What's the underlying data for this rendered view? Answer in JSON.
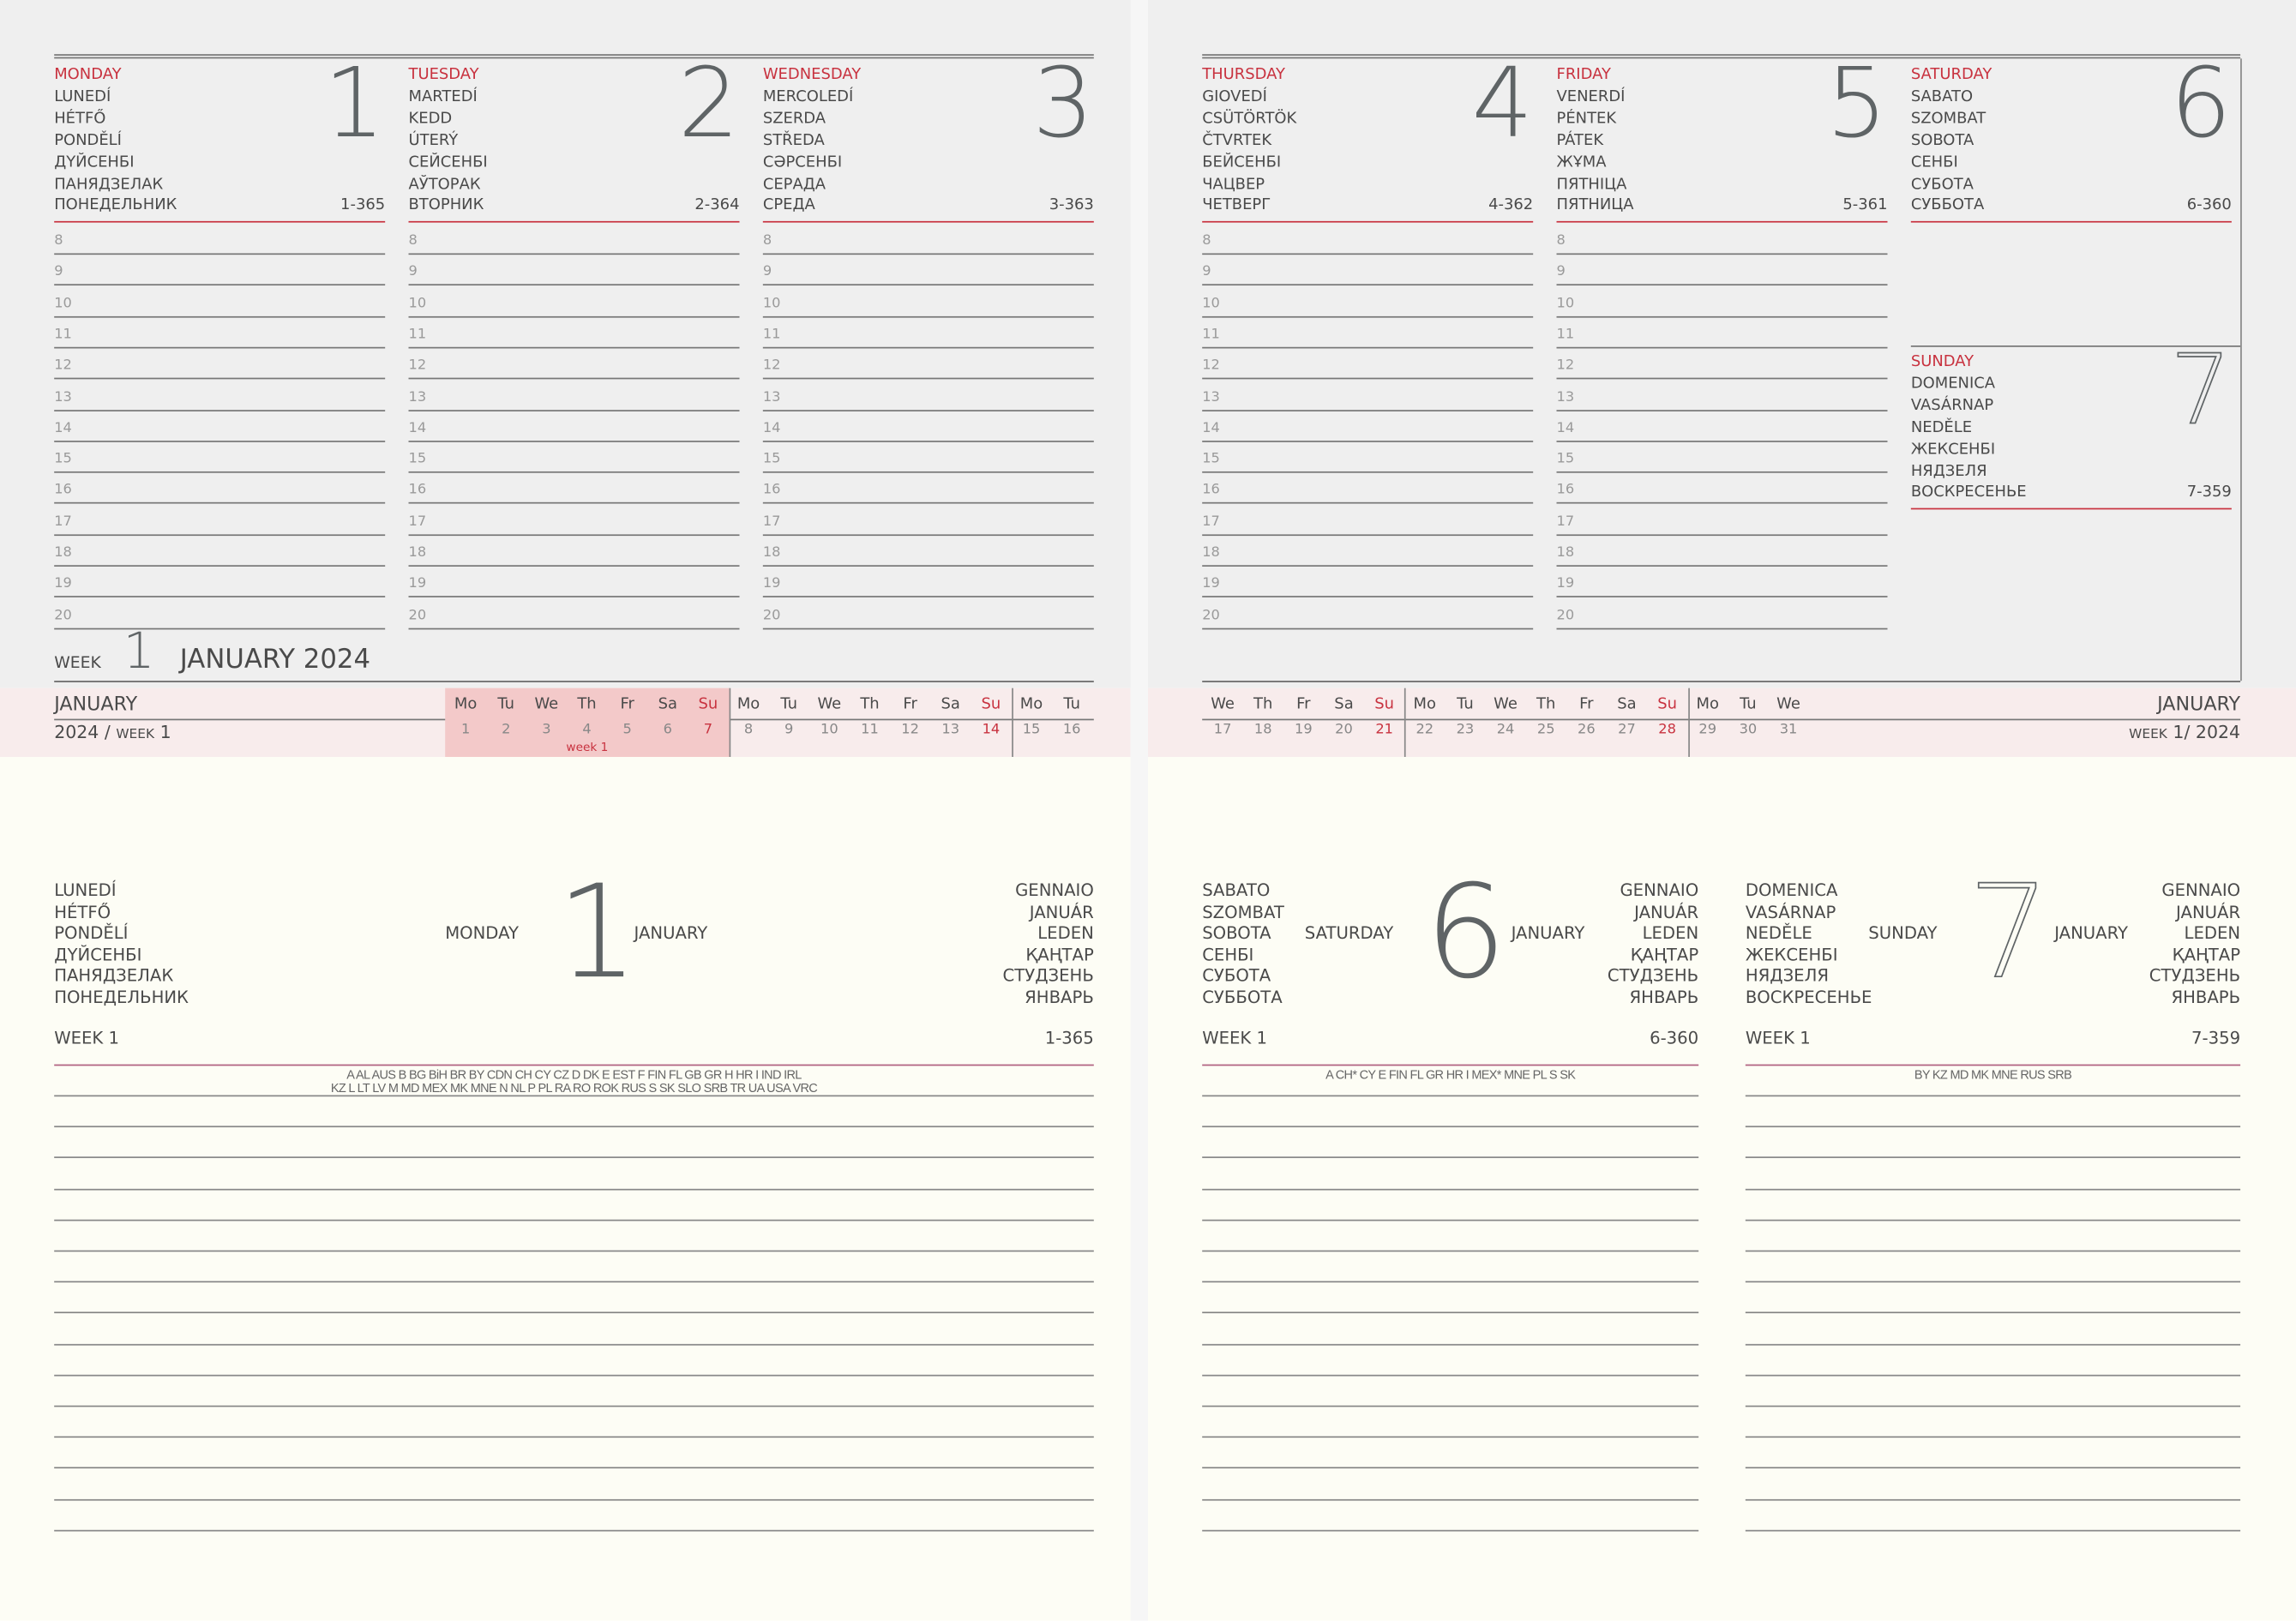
{
  "colors": {
    "accent": "#c8323f",
    "top_bg": "#efefef",
    "strip_bg": "#f8ecec",
    "week_highlight": "#f3c9c9",
    "bottom_bg": "#fdfdf5",
    "text": "#4a4a4a"
  },
  "top_left": {
    "days": [
      {
        "names": [
          "MONDAY",
          "LUNEDÍ",
          "HÉTFŐ",
          "PONDĚLÍ",
          "ДҮЙСЕНБІ",
          "ПАНЯДЗЕЛАК",
          "ПОНЕДЕЛЬНИК"
        ],
        "number": "1",
        "count": "1-365"
      },
      {
        "names": [
          "TUESDAY",
          "MARTEDÍ",
          "KEDD",
          "ÚTERÝ",
          "СЕЙСЕНБІ",
          "АЎТОРАК",
          "ВТОРНИК"
        ],
        "number": "2",
        "count": "2-364"
      },
      {
        "names": [
          "WEDNESDAY",
          "MERCOLEDÍ",
          "SZERDA",
          "STŘEDA",
          "СӘРСЕНБІ",
          "СЕРАДА",
          "СРЕДА"
        ],
        "number": "3",
        "count": "3-363"
      }
    ],
    "week_label": "WEEK",
    "week_number": "1",
    "month_year": "JANUARY 2024"
  },
  "top_right": {
    "days": [
      {
        "names": [
          "THURSDAY",
          "GIOVEDÍ",
          "CSÜTÖRTÖK",
          "ČTVRTEK",
          "БЕЙСЕНБІ",
          "ЧАЦВЕР",
          "ЧЕТВЕРГ"
        ],
        "number": "4",
        "count": "4-362"
      },
      {
        "names": [
          "FRIDAY",
          "VENERDÍ",
          "PÉNTEK",
          "PÁTEK",
          "ЖҰМА",
          "ПЯТНІЦА",
          "ПЯТНИЦА"
        ],
        "number": "5",
        "count": "5-361"
      }
    ],
    "saturday": {
      "names": [
        "SATURDAY",
        "SABATO",
        "SZOMBAT",
        "SOBOTA",
        "СЕНБІ",
        "СУБОТА",
        "СУББОТА"
      ],
      "number": "6",
      "count": "6-360"
    },
    "sunday": {
      "names": [
        "SUNDAY",
        "DOMENICA",
        "VASÁRNAP",
        "NEDĚLE",
        "ЖЕКСЕНБІ",
        "НЯДЗЕЛЯ",
        "ВОСКРЕСЕНЬЕ"
      ],
      "number": "7",
      "count": "7-359"
    }
  },
  "hours": [
    "8",
    "9",
    "10",
    "11",
    "12",
    "13",
    "14",
    "15",
    "16",
    "17",
    "18",
    "19",
    "20"
  ],
  "strip_left": {
    "month": "JANUARY",
    "year": "2024",
    "sep": "/",
    "week_label": "WEEK",
    "week": "1",
    "weekdays": [
      "Mo",
      "Tu",
      "We",
      "Th",
      "Fr",
      "Sa",
      "Su",
      "Mo",
      "Tu",
      "We",
      "Th",
      "Fr",
      "Sa",
      "Su",
      "Mo",
      "Tu"
    ],
    "dates": [
      "1",
      "2",
      "3",
      "4",
      "5",
      "6",
      "7",
      "8",
      "9",
      "10",
      "11",
      "12",
      "13",
      "14",
      "15",
      "16"
    ],
    "highlight_caption": "week 1"
  },
  "strip_right": {
    "month": "JANUARY",
    "week_label": "WEEK",
    "week": "1",
    "sep": "/",
    "year": "2024",
    "weekdays": [
      "We",
      "Th",
      "Fr",
      "Sa",
      "Su",
      "Mo",
      "Tu",
      "We",
      "Th",
      "Fr",
      "Sa",
      "Su",
      "Mo",
      "Tu",
      "We"
    ],
    "dates": [
      "17",
      "18",
      "19",
      "20",
      "21",
      "22",
      "23",
      "24",
      "25",
      "26",
      "27",
      "28",
      "29",
      "30",
      "31"
    ]
  },
  "bottom": [
    {
      "left_names": [
        "LUNEDÍ",
        "HÉTFŐ",
        "PONDĚLÍ",
        "ДҮЙСЕНБІ",
        "ПАНЯДЗЕЛАК",
        "ПОНЕДЕЛЬНИК"
      ],
      "day": "MONDAY",
      "number": "1",
      "month": "JANUARY",
      "right_names": [
        "GENNAIO",
        "JANUÁR",
        "LEDEN",
        "ҚАҢТАР",
        "СТУДЗЕНЬ",
        "ЯНВАРЬ"
      ],
      "week": "WEEK 1",
      "count": "1-365",
      "codes": [
        "A AL AUS B BG BiH BR BY CDN CH CY CZ D DK E EST F FIN FL GB GR H HR I IND IRL",
        "KZ L LT LV M MD MEX MK MNE N NL P PL RA RO ROK RUS S SK SLO SRB TR UA USA VRC"
      ]
    },
    {
      "left_names": [
        "SABATO",
        "SZOMBAT",
        "SOBOTA",
        "СЕНБІ",
        "СУБОТА",
        "СУББОТА"
      ],
      "day": "SATURDAY",
      "number": "6",
      "month": "JANUARY",
      "right_names": [
        "GENNAIO",
        "JANUÁR",
        "LEDEN",
        "ҚАҢТАР",
        "СТУДЗЕНЬ",
        "ЯНВАРЬ"
      ],
      "week": "WEEK 1",
      "count": "6-360",
      "codes": [
        "A CH* CY E FIN FL GR HR I MEX* MNE PL S SK"
      ]
    },
    {
      "left_names": [
        "DOMENICA",
        "VASÁRNAP",
        "NEDĚLE",
        "ЖЕКСЕНБІ",
        "НЯДЗЕЛЯ",
        "ВОСКРЕСЕНЬЕ"
      ],
      "day": "SUNDAY",
      "number": "7",
      "month": "JANUARY",
      "right_names": [
        "GENNAIO",
        "JANUÁR",
        "LEDEN",
        "ҚАҢТАР",
        "СТУДЗЕНЬ",
        "ЯНВАРЬ"
      ],
      "week": "WEEK 1",
      "count": "7-359",
      "codes": [
        "BY KZ MD MK MNE RUS SRB"
      ]
    }
  ]
}
